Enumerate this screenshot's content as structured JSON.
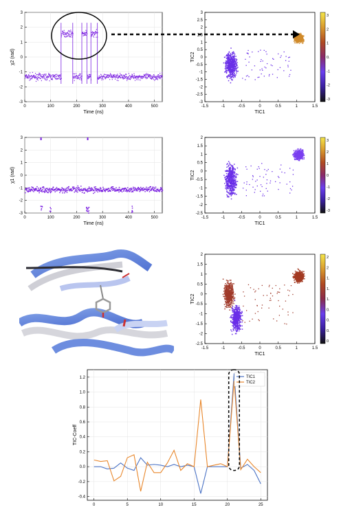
{
  "chart_data": [
    {
      "type": "scatter",
      "panel": "chi2-time",
      "xlabel": "Time (ns)",
      "ylabel": "χ2 (rad)",
      "xlim": [
        0,
        530
      ],
      "ylim": [
        -3,
        3
      ],
      "xticks": [
        "0",
        "100",
        "200",
        "300",
        "400",
        "500"
      ],
      "yticks": [
        "3",
        "2",
        "1",
        "0",
        "-1",
        "-2",
        "-3"
      ],
      "states": [
        {
          "x_start": 0,
          "x_end": 140,
          "y": -1.3
        },
        {
          "x_start": 140,
          "x_end": 185,
          "y": 1.6
        },
        {
          "x_start": 185,
          "x_end": 220,
          "y": -1.3
        },
        {
          "x_start": 220,
          "x_end": 240,
          "y": 1.6
        },
        {
          "x_start": 240,
          "x_end": 255,
          "y": -1.3
        },
        {
          "x_start": 255,
          "x_end": 280,
          "y": 1.6
        },
        {
          "x_start": 280,
          "x_end": 530,
          "y": -1.3
        }
      ],
      "color": "#7a1fe0",
      "grid": true
    },
    {
      "type": "scatter",
      "panel": "tic-chi2",
      "xlabel": "TIC1",
      "ylabel": "TIC2",
      "xlim": [
        -1.5,
        1.5
      ],
      "ylim": [
        -3,
        3
      ],
      "xticks": [
        "-1.5",
        "-1",
        "-0.5",
        "0",
        "0.5",
        "1",
        "1.5"
      ],
      "yticks": [
        "3",
        "2.5",
        "2",
        "1.5",
        "1",
        "0.5",
        "0",
        "-0.5",
        "-1",
        "-1.5",
        "-2",
        "-2.5",
        "-3"
      ],
      "colorbar_ticks": [
        "3",
        "2",
        "1",
        "0",
        "-1",
        "-2",
        "-3"
      ],
      "colorbar_ticks_shown": [
        "3",
        "2",
        "1",
        "0.",
        "-1",
        "-2",
        "-3"
      ],
      "clusters": [
        {
          "cx": -0.8,
          "cy": -0.5,
          "rx": 0.25,
          "ry": 1.5,
          "color": "#6a2fe8"
        },
        {
          "cx": 1.05,
          "cy": 1.3,
          "rx": 0.2,
          "ry": 0.45,
          "color": "#d08a2a"
        }
      ]
    },
    {
      "type": "scatter",
      "panel": "chi1-time",
      "xlabel": "Time (ns)",
      "ylabel": "χ1 (rad)",
      "xlim": [
        0,
        530
      ],
      "ylim": [
        -3,
        3
      ],
      "xticks": [
        "0",
        "100",
        "200",
        "300",
        "400",
        "500"
      ],
      "yticks": [
        "3",
        "2",
        "1",
        "0",
        "-1",
        "-2",
        "-3"
      ],
      "baseline": -1.1,
      "color": "#7a1fe0"
    },
    {
      "type": "scatter",
      "panel": "tic-chi1",
      "xlabel": "TIC1",
      "ylabel": "TIC2",
      "xlim": [
        -1.5,
        1.5
      ],
      "ylim": [
        -2.5,
        2
      ],
      "xticks": [
        "-1.5",
        "-1",
        "-0.5",
        "0",
        "0.5",
        "1",
        "1.5"
      ],
      "yticks": [
        "2",
        "1.5",
        "1",
        "0.5",
        "0",
        "-0.5",
        "-1",
        "-1.5",
        "-2",
        "-2.5"
      ],
      "colorbar_ticks_shown": [
        "3",
        "2",
        "1",
        "0",
        "-1",
        "-2",
        "-3"
      ],
      "clusters": [
        {
          "cx": -0.8,
          "cy": -0.5,
          "rx": 0.25,
          "ry": 1.5,
          "color": "#6a2fe8"
        },
        {
          "cx": 1.05,
          "cy": 1.0,
          "rx": 0.2,
          "ry": 0.45,
          "color": "#7a3ff0"
        }
      ]
    },
    {
      "type": "scatter",
      "panel": "tic-third",
      "xlabel": "TIC1",
      "ylabel": "TIC2",
      "xlim": [
        -1.5,
        1.5
      ],
      "ylim": [
        -2.5,
        2
      ],
      "xticks": [
        "-1.5",
        "-1",
        "-0.5",
        "0",
        "0.5",
        "1",
        "1.5"
      ],
      "yticks": [
        "2",
        "1.5",
        "1",
        "0.5",
        "0",
        "-0.5",
        "-1",
        "-1.5",
        "-2",
        "-2.5"
      ],
      "colorbar_ticks_shown": [
        "2",
        "2",
        "1.",
        "1.",
        "1.",
        "0.",
        "0.",
        "0.",
        "0"
      ],
      "clusters": [
        {
          "cx": -0.85,
          "cy": 0.0,
          "rx": 0.22,
          "ry": 1.0,
          "color": "#a03a2a"
        },
        {
          "cx": -0.65,
          "cy": -1.2,
          "rx": 0.22,
          "ry": 1.0,
          "color": "#6a2fe8"
        },
        {
          "cx": 1.05,
          "cy": 0.9,
          "rx": 0.2,
          "ry": 0.45,
          "color": "#a33a22"
        }
      ]
    },
    {
      "type": "line",
      "panel": "tic-coeff",
      "ylabel": "TIC-Coeff",
      "xlim": [
        -1,
        26
      ],
      "ylim": [
        -0.45,
        1.3
      ],
      "xticks": [
        "0",
        "5",
        "10",
        "15",
        "20",
        "25"
      ],
      "yticks": [
        "1.2",
        "1.0",
        "0.8",
        "0.6",
        "0.4",
        "0.2",
        "0.0",
        "-0.2",
        "-0.4"
      ],
      "x": [
        0,
        1,
        2,
        3,
        4,
        5,
        6,
        7,
        8,
        9,
        10,
        11,
        12,
        13,
        14,
        15,
        16,
        17,
        18,
        19,
        20,
        21,
        22,
        23,
        24,
        25
      ],
      "legend": "top-right",
      "grid": true,
      "series": [
        {
          "name": "TIC1",
          "color": "#4a72c4",
          "values": [
            0.0,
            0.0,
            -0.03,
            -0.02,
            0.05,
            -0.02,
            -0.05,
            0.12,
            0.02,
            0.03,
            0.02,
            0.0,
            0.03,
            0.0,
            0.02,
            0.0,
            -0.36,
            0.0,
            0.0,
            0.0,
            0.0,
            1.25,
            -0.02,
            0.03,
            -0.05,
            -0.23
          ]
        },
        {
          "name": "TIC2",
          "color": "#e8862a",
          "values": [
            0.09,
            0.07,
            0.08,
            -0.19,
            -0.13,
            0.12,
            0.16,
            -0.33,
            0.06,
            -0.08,
            -0.08,
            0.05,
            0.22,
            -0.05,
            0.04,
            0.0,
            0.9,
            0.0,
            0.02,
            0.04,
            0.0,
            1.15,
            -0.04,
            0.1,
            0.0,
            -0.08
          ]
        }
      ]
    }
  ],
  "arrow": {
    "style": "dashed"
  }
}
